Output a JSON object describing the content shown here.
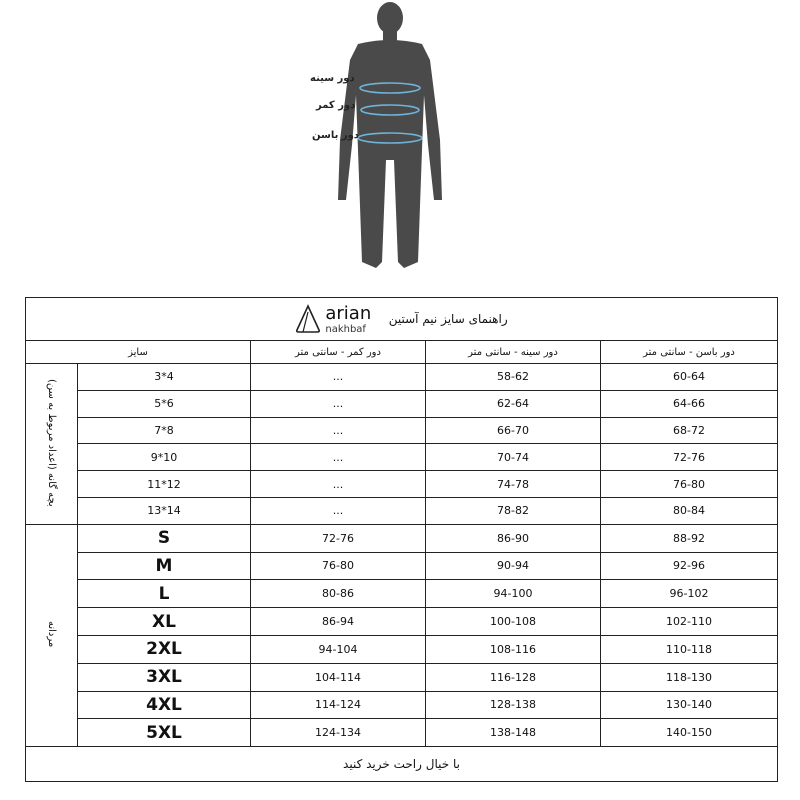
{
  "figure": {
    "labels": [
      "دور سینه",
      "دور کمر",
      "دور باسن"
    ],
    "body_color": "#4a4a4a",
    "tape_color": "#6fb3d8"
  },
  "header": {
    "logo_word": "arian",
    "logo_sub": "nakhbaf",
    "title": "راهنمای سایز نیم آستین"
  },
  "columns": {
    "size": "سایز",
    "waist": "دور کمر - سانتی متر",
    "chest": "دور سینه - سانتی متر",
    "hip": "دور باسن - سانتی متر"
  },
  "groups": {
    "kids": "بچه گانه (اعداد مربوط به سن)",
    "men": "مردانه"
  },
  "kids": [
    {
      "size": "3*4",
      "waist": "...",
      "chest": "58-62",
      "hip": "60-64"
    },
    {
      "size": "5*6",
      "waist": "...",
      "chest": "62-64",
      "hip": "64-66"
    },
    {
      "size": "7*8",
      "waist": "...",
      "chest": "66-70",
      "hip": "68-72"
    },
    {
      "size": "9*10",
      "waist": "...",
      "chest": "70-74",
      "hip": "72-76"
    },
    {
      "size": "11*12",
      "waist": "...",
      "chest": "74-78",
      "hip": "76-80"
    },
    {
      "size": "13*14",
      "waist": "...",
      "chest": "78-82",
      "hip": "80-84"
    }
  ],
  "men": [
    {
      "size": "S",
      "waist": "72-76",
      "chest": "86-90",
      "hip": "88-92"
    },
    {
      "size": "M",
      "waist": "76-80",
      "chest": "90-94",
      "hip": "92-96"
    },
    {
      "size": "L",
      "waist": "80-86",
      "chest": "94-100",
      "hip": "96-102"
    },
    {
      "size": "XL",
      "waist": "86-94",
      "chest": "100-108",
      "hip": "102-110"
    },
    {
      "size": "2XL",
      "waist": "94-104",
      "chest": "108-116",
      "hip": "110-118"
    },
    {
      "size": "3XL",
      "waist": "104-114",
      "chest": "116-128",
      "hip": "118-130"
    },
    {
      "size": "4XL",
      "waist": "114-124",
      "chest": "128-138",
      "hip": "130-140"
    },
    {
      "size": "5XL",
      "waist": "124-134",
      "chest": "138-148",
      "hip": "140-150"
    }
  ],
  "footer": "با خیال راحت خرید کنید"
}
